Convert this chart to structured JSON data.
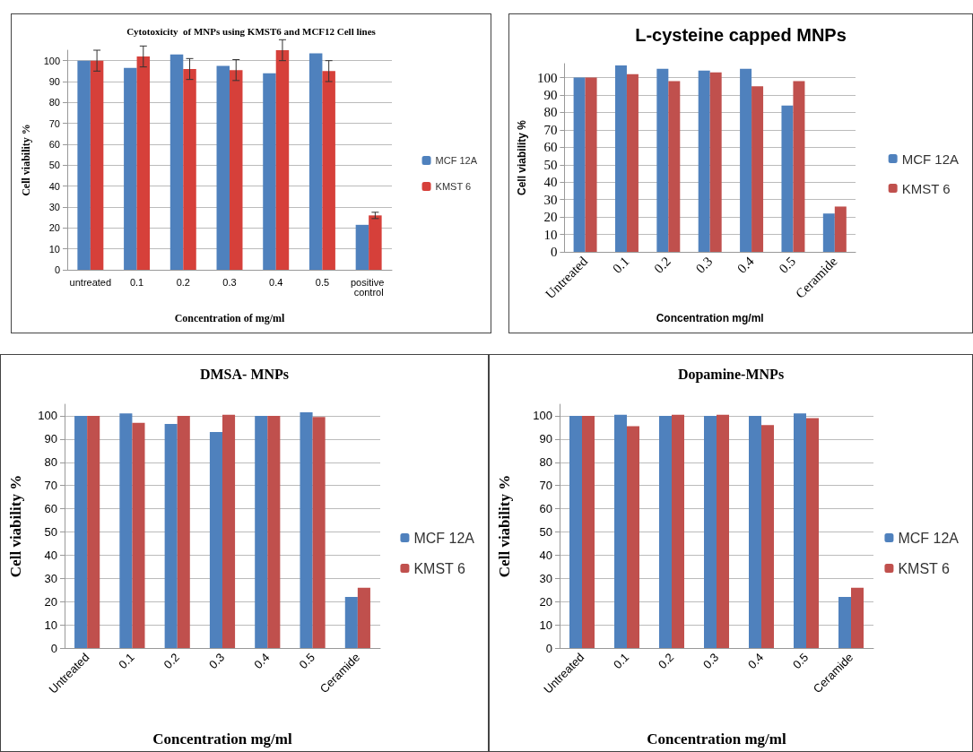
{
  "chart_data": [
    {
      "type": "bar",
      "title": "Cytotoxicity  of MNPs using KMST6 and MCF12 Cell lines",
      "xlabel": "Concentration of mg/ml",
      "ylabel": "Cell viability %",
      "categories": [
        "untreated",
        "0.1",
        "0.2",
        "0.3",
        "0.4",
        "0.5",
        "positive control"
      ],
      "series": [
        {
          "name": "MCF 12A",
          "color": "#4f81bd",
          "values": [
            100,
            96.5,
            103,
            97.5,
            94,
            103.5,
            21.5
          ]
        },
        {
          "name": "KMST 6",
          "color": "#d6403a",
          "values": [
            100,
            102,
            96,
            95.5,
            105,
            95,
            26
          ],
          "errors": [
            5,
            5,
            5,
            5,
            5,
            5,
            1.5
          ]
        }
      ],
      "ylim": [
        0,
        105
      ],
      "yticks": [
        0,
        10,
        20,
        30,
        40,
        50,
        60,
        70,
        80,
        90,
        100
      ],
      "grid": "y",
      "legend": "right"
    },
    {
      "type": "bar",
      "title": "L-cysteine capped MNPs",
      "xlabel": "Concentration mg/ml",
      "ylabel": "Cell viability %",
      "categories": [
        "Untreated",
        "0.1",
        "0.2",
        "0.3",
        "0.4",
        "0.5",
        "Ceramide"
      ],
      "series": [
        {
          "name": "MCF 12A",
          "color": "#4f81bd",
          "values": [
            100,
            107,
            105,
            104,
            105,
            84,
            22
          ]
        },
        {
          "name": "KMST 6",
          "color": "#c0504d",
          "values": [
            100,
            102,
            98,
            103,
            95,
            98,
            26
          ]
        }
      ],
      "ylim": [
        0,
        108
      ],
      "yticks": [
        0,
        10,
        20,
        30,
        40,
        50,
        60,
        70,
        80,
        90,
        100
      ],
      "grid": "y",
      "legend": "right"
    },
    {
      "type": "bar",
      "title": "DMSA- MNPs",
      "xlabel": "Concentration mg/ml",
      "ylabel": "Cell viability %",
      "categories": [
        "Untreated",
        "0.1",
        "0.2",
        "0.3",
        "0.4",
        "0.5",
        "Ceramide"
      ],
      "series": [
        {
          "name": "MCF 12A",
          "color": "#4f81bd",
          "values": [
            100,
            101,
            96.5,
            93,
            100,
            101.5,
            22
          ]
        },
        {
          "name": "KMST 6",
          "color": "#c0504d",
          "values": [
            100,
            97,
            100,
            100.5,
            100,
            99.5,
            26
          ]
        }
      ],
      "ylim": [
        0,
        105
      ],
      "yticks": [
        0,
        10,
        20,
        30,
        40,
        50,
        60,
        70,
        80,
        90,
        100
      ],
      "grid": "y",
      "legend": "right"
    },
    {
      "type": "bar",
      "title": "Dopamine-MNPs",
      "xlabel": "Concentration mg/ml",
      "ylabel": "Cell viability %",
      "categories": [
        "Untreated",
        "0.1",
        "0.2",
        "0.3",
        "0.4",
        "0.5",
        "Ceramide"
      ],
      "series": [
        {
          "name": "MCF 12A",
          "color": "#4f81bd",
          "values": [
            100,
            100.5,
            100,
            100,
            100,
            101,
            22
          ]
        },
        {
          "name": "KMST 6",
          "color": "#c0504d",
          "values": [
            100,
            95.5,
            100.5,
            100.5,
            96,
            99,
            26
          ]
        }
      ],
      "ylim": [
        0,
        105
      ],
      "yticks": [
        0,
        10,
        20,
        30,
        40,
        50,
        60,
        70,
        80,
        90,
        100
      ],
      "grid": "y",
      "legend": "right"
    }
  ]
}
